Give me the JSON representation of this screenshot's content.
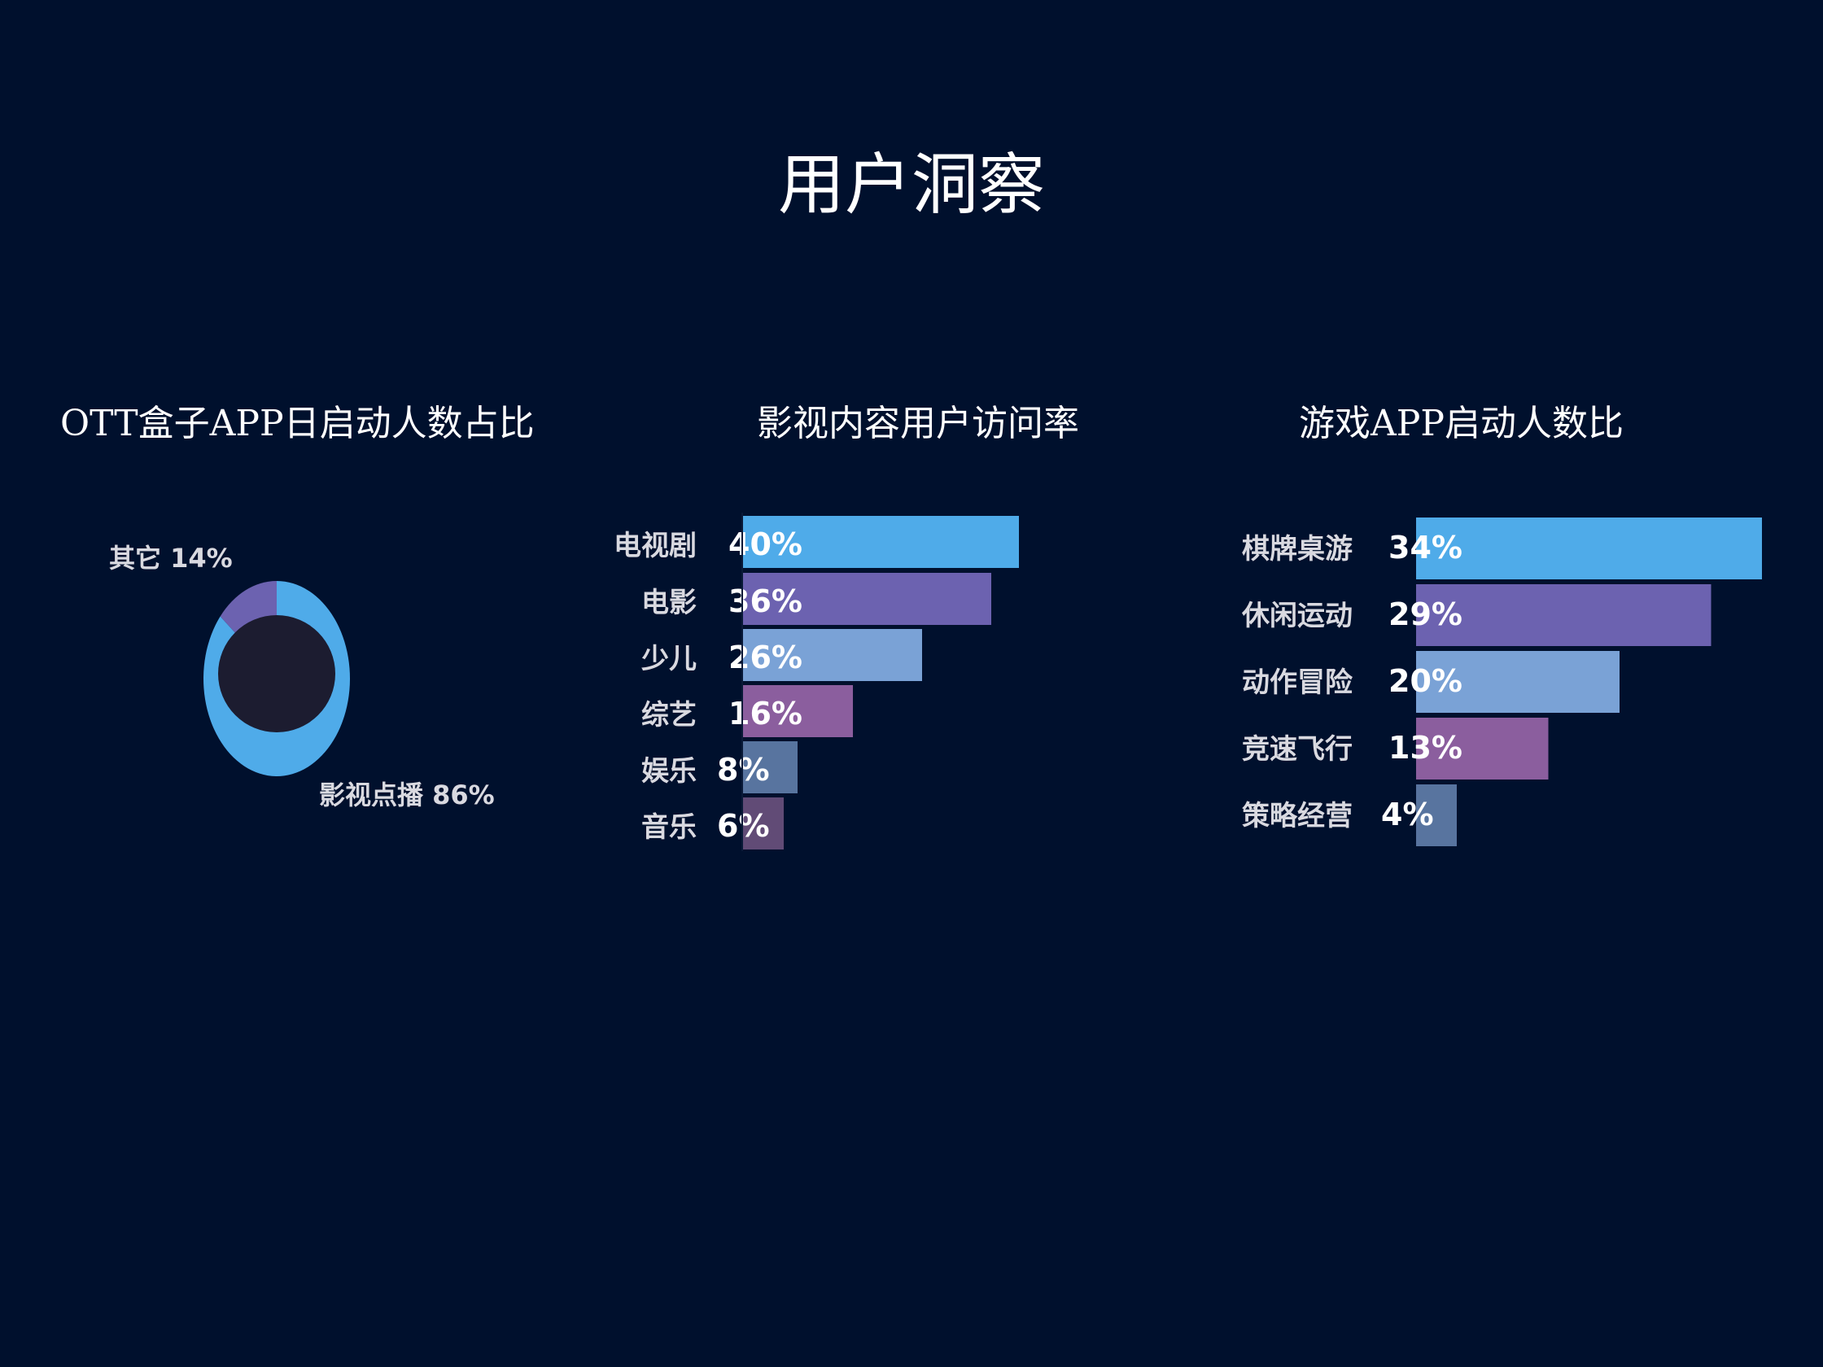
{
  "title": "用户洞察",
  "colors": {
    "background": "#00102d",
    "series": [
      "#4fabe9",
      "#6c62b0",
      "#7aa2d6",
      "#8b5e9e",
      "#58749f",
      "#614b76"
    ],
    "donut_hole": "#1c1c30"
  },
  "chart_data": [
    {
      "type": "pie",
      "title": "OTT盒子APP日启动人数占比",
      "slices": [
        {
          "label": "影视点播",
          "value": 86,
          "value_label": "86%",
          "color": "#4fabe9"
        },
        {
          "label": "其它",
          "value": 14,
          "value_label": "14%",
          "color": "#6c62b0"
        }
      ]
    },
    {
      "type": "bar",
      "orientation": "horizontal",
      "title": "影视内容用户访问率",
      "categories": [
        "电视剧",
        "电影",
        "少儿",
        "综艺",
        "娱乐",
        "音乐"
      ],
      "values": [
        40,
        36,
        26,
        16,
        8,
        6
      ],
      "value_labels": [
        "40%",
        "36%",
        "26%",
        "16%",
        "8%",
        "6%"
      ],
      "colors": [
        "#4fabe9",
        "#6c62b0",
        "#7aa2d6",
        "#8b5e9e",
        "#58749f",
        "#614b76"
      ]
    },
    {
      "type": "bar",
      "orientation": "horizontal",
      "title": "游戏APP启动人数比",
      "categories": [
        "棋牌桌游",
        "休闲运动",
        "动作冒险",
        "竞速飞行",
        "策略经营"
      ],
      "values": [
        34,
        29,
        20,
        13,
        4
      ],
      "value_labels": [
        "34%",
        "29%",
        "20%",
        "13%",
        "4%"
      ],
      "colors": [
        "#4fabe9",
        "#6c62b0",
        "#7aa2d6",
        "#8b5e9e",
        "#58749f"
      ]
    }
  ]
}
